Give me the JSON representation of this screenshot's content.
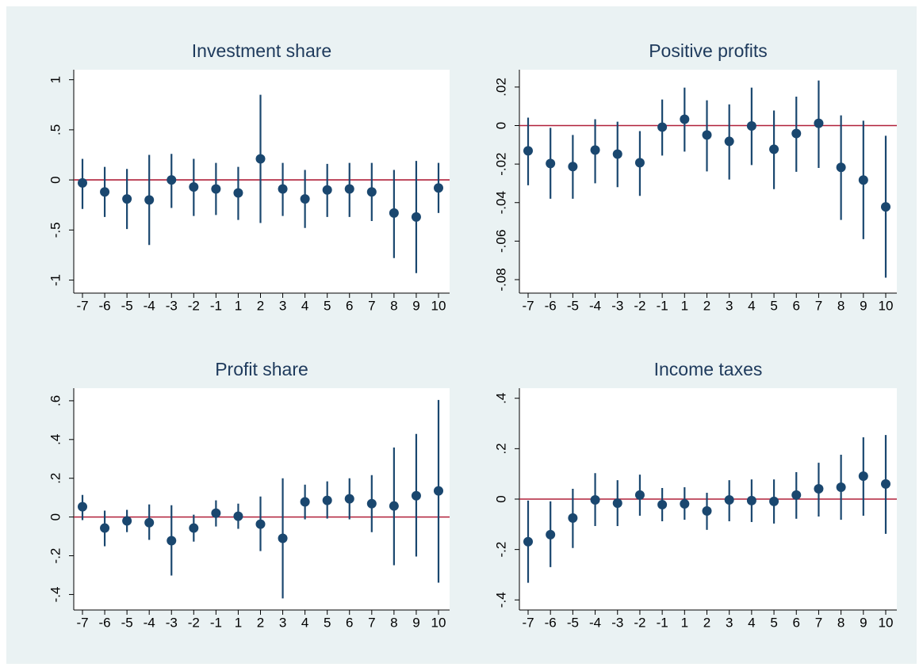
{
  "chart_data": [
    {
      "type": "errorbar",
      "title": "Investment share",
      "categories": [
        "-7",
        "-6",
        "-5",
        "-4",
        "-3",
        "-2",
        "-1",
        "1",
        "2",
        "3",
        "4",
        "5",
        "6",
        "7",
        "8",
        "9",
        "10"
      ],
      "values": [
        -0.03,
        -0.12,
        -0.19,
        -0.2,
        0,
        -0.07,
        -0.09,
        -0.13,
        0.21,
        -0.09,
        -0.19,
        -0.1,
        -0.09,
        -0.12,
        -0.33,
        -0.37,
        -0.08
      ],
      "lower": [
        -0.29,
        -0.37,
        -0.49,
        -0.65,
        -0.28,
        -0.36,
        -0.35,
        -0.4,
        -0.43,
        -0.36,
        -0.48,
        -0.37,
        -0.37,
        -0.41,
        -0.78,
        -0.93,
        -0.33
      ],
      "upper": [
        0.21,
        0.13,
        0.11,
        0.25,
        0.26,
        0.21,
        0.17,
        0.13,
        0.85,
        0.17,
        0.1,
        0.16,
        0.17,
        0.17,
        0.1,
        0.19,
        0.17
      ],
      "ylim": [
        -1.13,
        1.1
      ],
      "yticks": [
        -1,
        {
          "value": -0.5,
          "label": "-.5"
        },
        0,
        {
          "value": 0.5,
          "label": ".5"
        },
        1
      ],
      "refline": 0,
      "color": "#1a476f",
      "refline_color": "#b0203a"
    },
    {
      "type": "errorbar",
      "title": "Positive profits",
      "categories": [
        "-7",
        "-6",
        "-5",
        "-4",
        "-3",
        "-2",
        "-1",
        "1",
        "2",
        "3",
        "4",
        "5",
        "6",
        "7",
        "8",
        "9",
        "10"
      ],
      "values": [
        -0.0131,
        -0.0197,
        -0.0213,
        -0.0127,
        -0.0148,
        -0.0193,
        -0.0008,
        0.0033,
        -0.0049,
        -0.0082,
        -0.0002,
        -0.0123,
        -0.0041,
        0.0012,
        -0.0217,
        -0.0283,
        -0.0422
      ],
      "lower": [
        -0.031,
        -0.038,
        -0.038,
        -0.03,
        -0.032,
        -0.0365,
        -0.0156,
        -0.0135,
        -0.0238,
        -0.028,
        -0.0205,
        -0.033,
        -0.024,
        -0.022,
        -0.049,
        -0.059,
        -0.079
      ],
      "upper": [
        0.0041,
        -0.0012,
        -0.0049,
        0.0033,
        0.002,
        -0.0029,
        0.0135,
        0.0197,
        0.0131,
        0.011,
        0.0197,
        0.0078,
        0.015,
        0.0234,
        0.0053,
        0.0025,
        -0.0053
      ],
      "ylim": [
        -0.087,
        0.029
      ],
      "yticks": [
        {
          "value": -0.08,
          "label": "-.08"
        },
        {
          "value": -0.06,
          "label": "-.06"
        },
        {
          "value": -0.04,
          "label": "-.04"
        },
        {
          "value": -0.02,
          "label": "-.02"
        },
        0,
        {
          "value": 0.02,
          "label": ".02"
        }
      ],
      "refline": 0,
      "color": "#1a476f",
      "refline_color": "#b0203a"
    },
    {
      "type": "errorbar",
      "title": "Profit share",
      "categories": [
        "-7",
        "-6",
        "-5",
        "-4",
        "-3",
        "-2",
        "-1",
        "1",
        "2",
        "3",
        "4",
        "5",
        "6",
        "7",
        "8",
        "9",
        "10"
      ],
      "values": [
        0.053,
        -0.057,
        -0.02,
        -0.029,
        -0.122,
        -0.057,
        0.02,
        0.004,
        -0.037,
        -0.11,
        0.078,
        0.086,
        0.094,
        0.069,
        0.057,
        0.11,
        0.135
      ],
      "lower": [
        -0.016,
        -0.151,
        -0.078,
        -0.118,
        -0.302,
        -0.127,
        -0.049,
        -0.061,
        -0.176,
        -0.42,
        -0.012,
        -0.008,
        -0.012,
        -0.078,
        -0.249,
        -0.204,
        -0.339
      ],
      "upper": [
        0.114,
        0.033,
        0.037,
        0.065,
        0.061,
        0.012,
        0.086,
        0.069,
        0.106,
        0.2,
        0.167,
        0.184,
        0.2,
        0.216,
        0.359,
        0.429,
        0.604
      ],
      "ylim": [
        -0.48,
        0.665
      ],
      "yticks": [
        {
          "value": -0.4,
          "label": "-.4"
        },
        {
          "value": -0.2,
          "label": "-.2"
        },
        0,
        {
          "value": 0.2,
          "label": ".2"
        },
        {
          "value": 0.4,
          "label": ".4"
        },
        {
          "value": 0.6,
          "label": ".6"
        }
      ],
      "refline": 0,
      "color": "#1a476f",
      "refline_color": "#b0203a"
    },
    {
      "type": "errorbar",
      "title": "Income taxes",
      "categories": [
        "-7",
        "-6",
        "-5",
        "-4",
        "-3",
        "-2",
        "-1",
        "1",
        "2",
        "3",
        "4",
        "5",
        "6",
        "7",
        "8",
        "9",
        "10"
      ],
      "values": [
        -0.169,
        -0.141,
        -0.075,
        -0.003,
        -0.016,
        0.016,
        -0.022,
        -0.019,
        -0.047,
        -0.003,
        -0.006,
        -0.009,
        0.016,
        0.041,
        0.047,
        0.091,
        0.06
      ],
      "lower": [
        -0.332,
        -0.27,
        -0.194,
        -0.107,
        -0.107,
        -0.066,
        -0.088,
        -0.082,
        -0.122,
        -0.088,
        -0.091,
        -0.097,
        -0.078,
        -0.069,
        -0.082,
        -0.066,
        -0.138
      ],
      "upper": [
        -0.006,
        -0.009,
        0.041,
        0.103,
        0.075,
        0.097,
        0.044,
        0.047,
        0.025,
        0.075,
        0.078,
        0.078,
        0.107,
        0.144,
        0.176,
        0.245,
        0.254
      ],
      "ylim": [
        -0.44,
        0.44
      ],
      "yticks": [
        {
          "value": -0.4,
          "label": "-.4"
        },
        {
          "value": -0.2,
          "label": "-.2"
        },
        0,
        {
          "value": 0.2,
          "label": ".2"
        },
        {
          "value": 0.4,
          "label": ".4"
        }
      ],
      "refline": 0,
      "color": "#1a476f",
      "refline_color": "#b0203a"
    }
  ]
}
